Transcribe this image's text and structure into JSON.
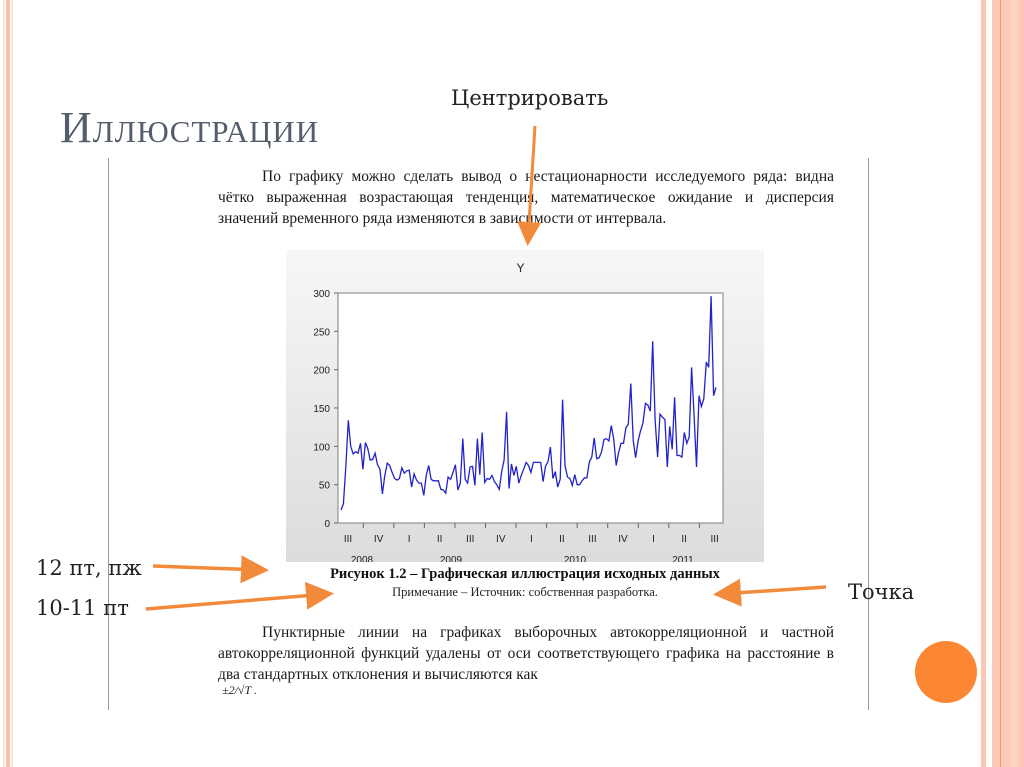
{
  "slide": {
    "title": "Иллюстрации",
    "colors": {
      "accent_orange": "#fb8735",
      "stripe_pink": "#fbc6b3",
      "title_gray": "#535d6b",
      "series_blue": "#2222cc"
    }
  },
  "annotations": {
    "center": "Центрировать",
    "caption_font": "12 пт, пж",
    "note_font": "10-11 пт",
    "period": "Точка"
  },
  "document": {
    "paragraph1": "По графику можно сделать вывод о нестационарности исследуемого ряда: видна чётко выраженная возрастающая тенденция, математическое ожидание и дисперсия значений временного ряда изменяются в зависимости от интервала.",
    "figure_caption": "Рисунок 1.2 – Графическая иллюстрация исходных данных",
    "figure_note": "Примечание – Источник: собственная разработка.",
    "paragraph2": "Пунктирные линии на графиках выборочных автокорреляционной и частной автокорреляционной функций удалены от оси соответствующего графика на расстояние в два стандартных отклонения и вычисляются как",
    "formula": "±2/√T ."
  },
  "chart_data": {
    "type": "line",
    "title": "Y",
    "xlabel": "",
    "ylabel": "",
    "ylim": [
      0,
      300
    ],
    "yticks": [
      0,
      50,
      100,
      150,
      200,
      250,
      300
    ],
    "grid": false,
    "legend": "none",
    "quarter_ticks": [
      "III",
      "IV",
      "I",
      "II",
      "III",
      "IV",
      "I",
      "II",
      "III",
      "IV",
      "I",
      "II",
      "III"
    ],
    "year_labels": [
      "2008",
      "2009",
      "2010",
      "2011"
    ],
    "series": [
      {
        "name": "Y",
        "frequency": "weekly",
        "values": [
          17,
          25,
          75,
          134,
          100,
          90,
          93,
          91,
          104,
          70,
          105,
          97,
          82,
          83,
          91,
          76,
          70,
          38,
          62,
          78,
          75,
          66,
          58,
          56,
          58,
          72,
          65,
          68,
          69,
          47,
          64,
          56,
          52,
          52,
          36,
          62,
          75,
          57,
          55,
          55,
          55,
          44,
          43,
          39,
          60,
          57,
          66,
          76,
          43,
          52,
          110,
          57,
          52,
          73,
          74,
          49,
          110,
          63,
          118,
          53,
          58,
          57,
          62,
          54,
          50,
          44,
          67,
          82,
          145,
          45,
          77,
          62,
          74,
          52,
          62,
          70,
          79,
          75,
          66,
          79,
          79,
          79,
          79,
          54,
          74,
          80,
          99,
          58,
          67,
          47,
          57,
          161,
          75,
          60,
          58,
          49,
          63,
          50,
          50,
          55,
          59,
          59,
          80,
          86,
          111,
          84,
          85,
          93,
          109,
          110,
          107,
          127,
          110,
          75,
          92,
          104,
          104,
          124,
          129,
          182,
          108,
          85,
          107,
          120,
          130,
          156,
          154,
          146,
          237,
          135,
          86,
          142,
          138,
          135,
          73,
          126,
          96,
          164,
          88,
          88,
          86,
          118,
          104,
          112,
          203,
          140,
          73,
          166,
          152,
          162,
          210,
          203,
          296,
          166,
          177
        ]
      }
    ]
  }
}
